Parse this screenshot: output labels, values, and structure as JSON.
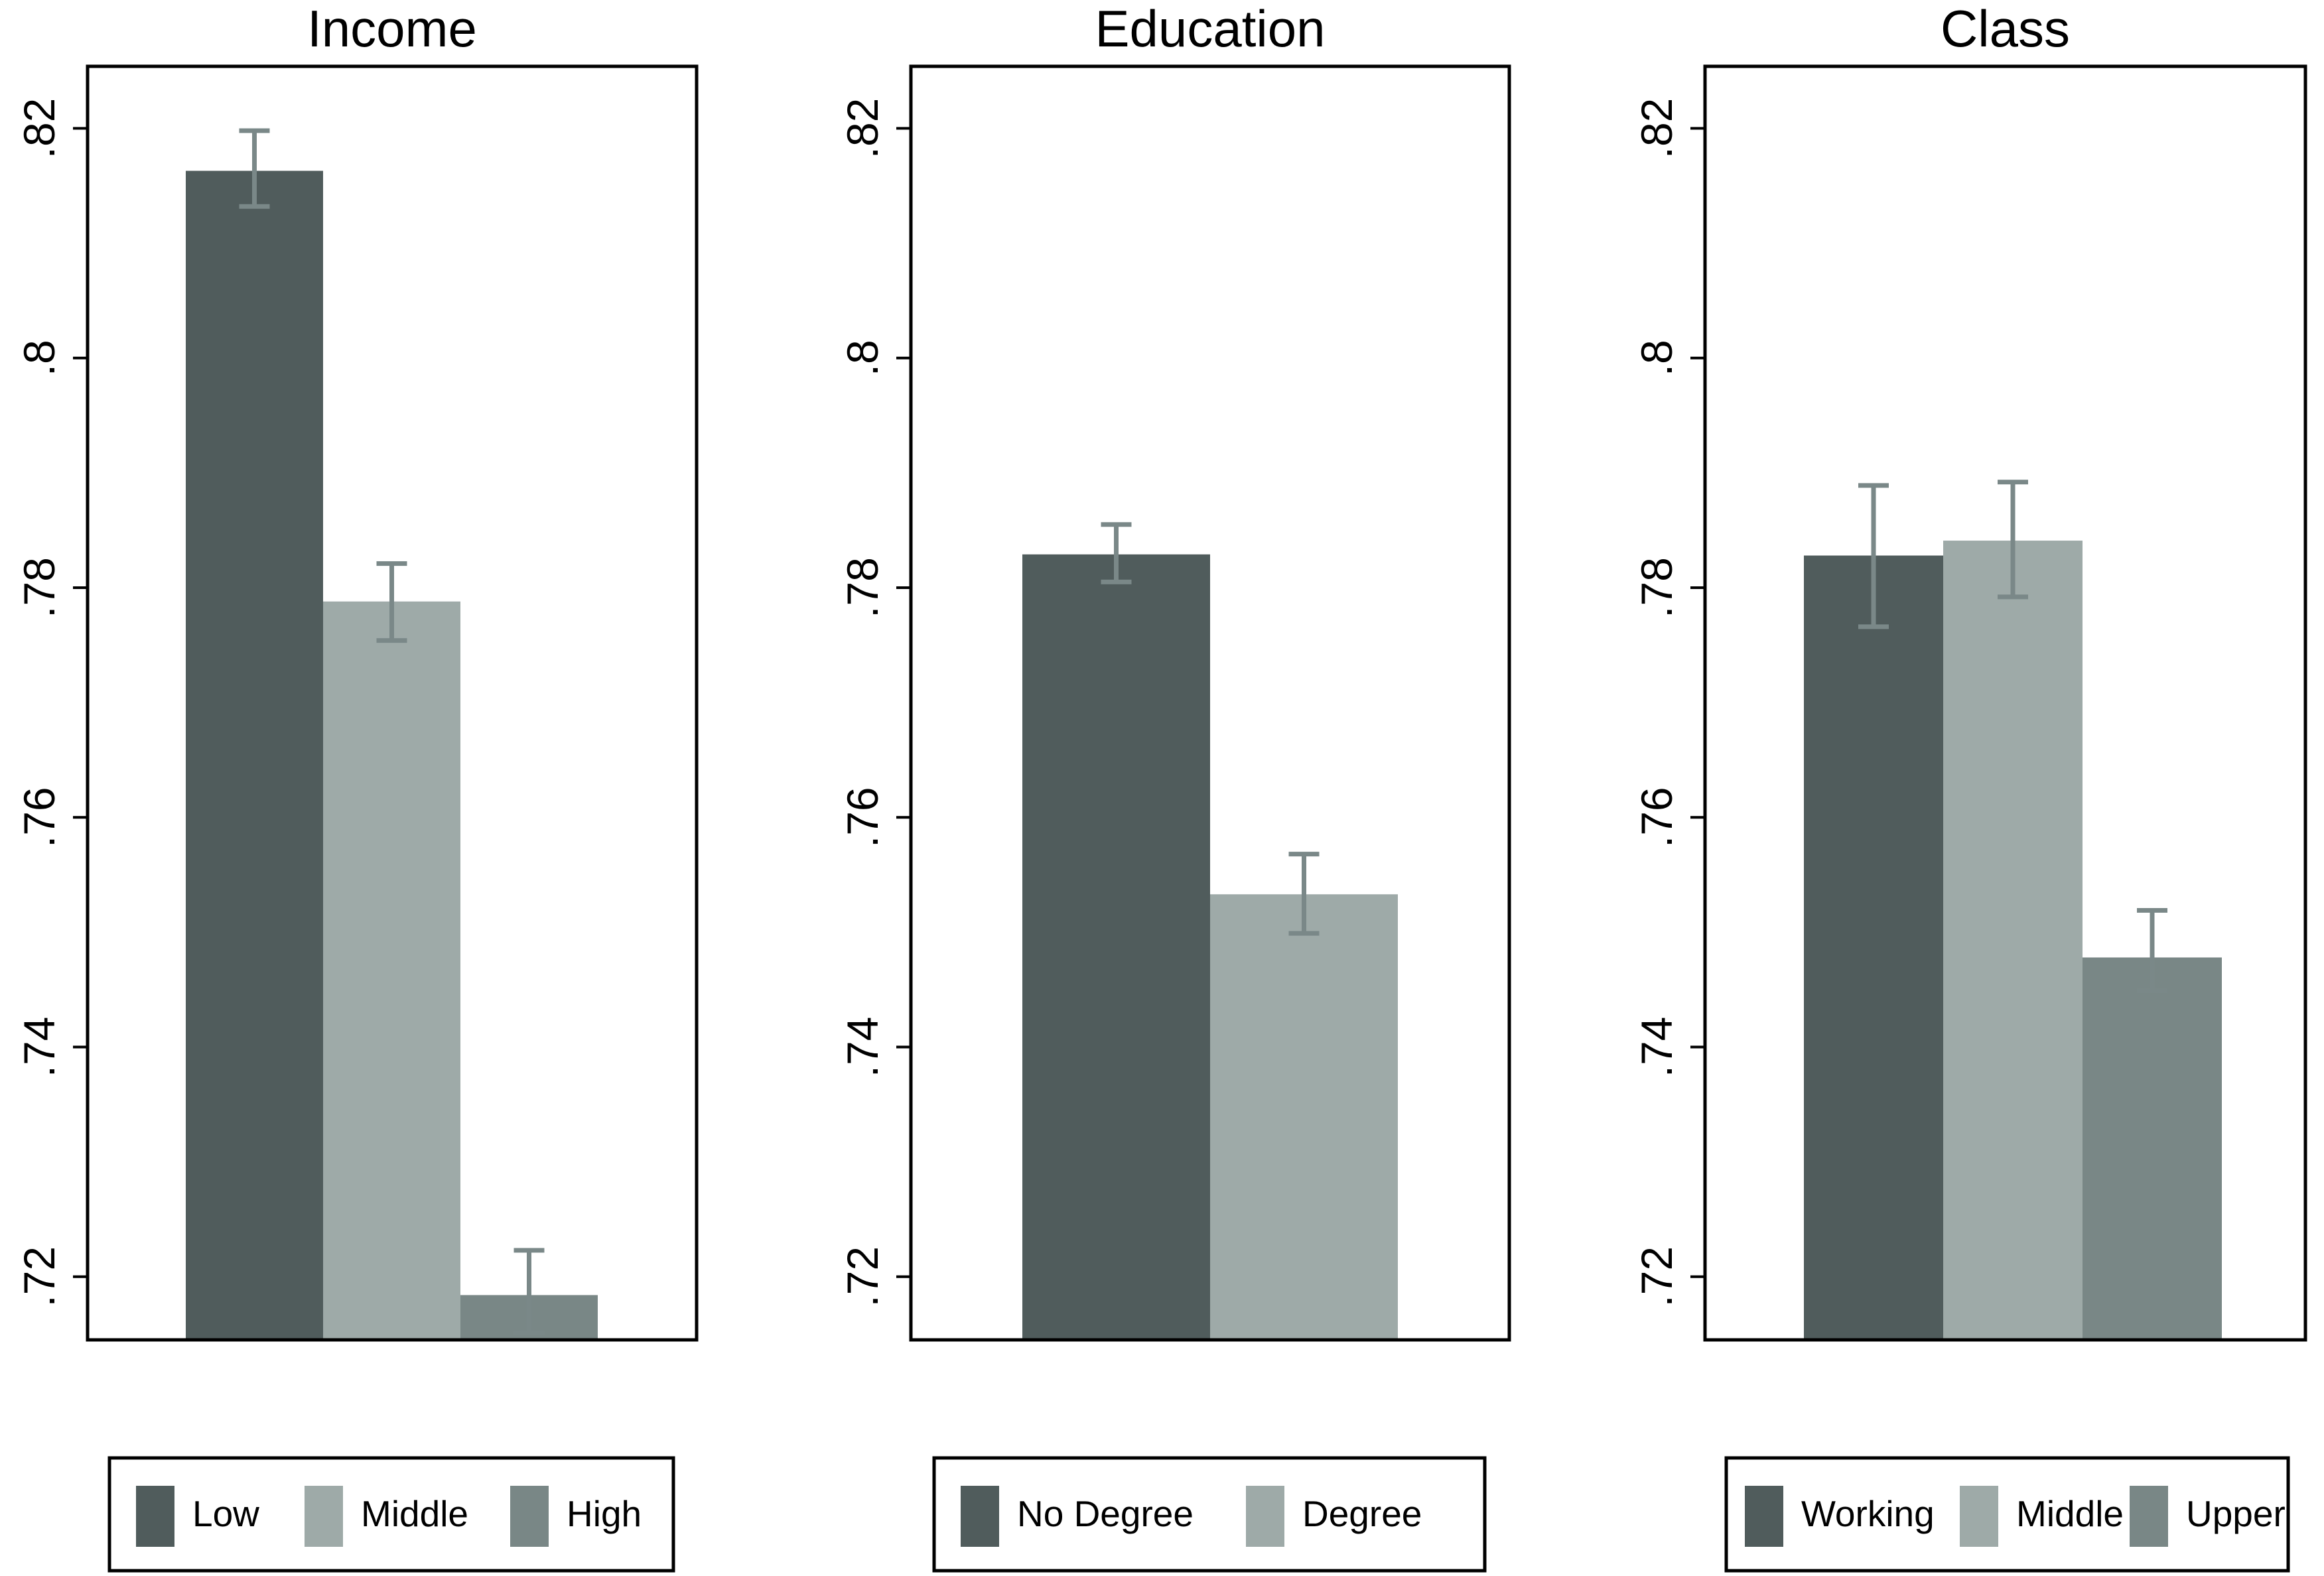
{
  "colors": {
    "dark": "#505c5c",
    "light": "#9eaaa8",
    "mid": "#798786",
    "error_bar": "#7a8888"
  },
  "chart_data": [
    {
      "type": "bar",
      "title": "Income",
      "categories": [
        "Low",
        "Middle",
        "High"
      ],
      "values": [
        0.8163,
        0.7788,
        0.7184
      ],
      "error_low": [
        0.8132,
        0.7754,
        0.7151
      ],
      "error_high": [
        0.8198,
        0.7821,
        0.7223
      ],
      "ylim": [
        0.7145,
        0.8254
      ],
      "yticks": [
        0.72,
        0.74,
        0.76,
        0.78,
        0.8,
        0.82
      ],
      "ytick_labels": [
        ".72",
        ".74",
        ".76",
        ".78",
        ".8",
        ".82"
      ],
      "bar_colors": [
        "dark",
        "light",
        "mid"
      ],
      "legend": {
        "position": "bottom",
        "entries": [
          "Low",
          "Middle",
          "High"
        ]
      }
    },
    {
      "type": "bar",
      "title": "Education",
      "categories": [
        "No Degree",
        "Degree"
      ],
      "values": [
        0.7829,
        0.7533
      ],
      "error_low": [
        0.7805,
        0.7499
      ],
      "error_high": [
        0.7855,
        0.7568
      ],
      "ylim": [
        0.7145,
        0.8254
      ],
      "yticks": [
        0.72,
        0.74,
        0.76,
        0.78,
        0.8,
        0.82
      ],
      "ytick_labels": [
        ".72",
        ".74",
        ".76",
        ".78",
        ".8",
        ".82"
      ],
      "bar_colors": [
        "dark",
        "light"
      ],
      "legend": {
        "position": "bottom",
        "entries": [
          "No Degree",
          "Degree"
        ]
      }
    },
    {
      "type": "bar",
      "title": "Class",
      "categories": [
        "Working",
        "Middle",
        "Upper"
      ],
      "values": [
        0.7828,
        0.7841,
        0.7478
      ],
      "error_low": [
        0.7766,
        0.7792,
        0.7449
      ],
      "error_high": [
        0.7889,
        0.7892,
        0.7519
      ],
      "ylim": [
        0.7145,
        0.8254
      ],
      "yticks": [
        0.72,
        0.74,
        0.76,
        0.78,
        0.8,
        0.82
      ],
      "ytick_labels": [
        ".72",
        ".74",
        ".76",
        ".78",
        ".8",
        ".82"
      ],
      "bar_colors": [
        "dark",
        "light",
        "mid"
      ],
      "legend": {
        "position": "bottom",
        "entries": [
          "Working",
          "Middle",
          "Upper"
        ]
      }
    }
  ]
}
